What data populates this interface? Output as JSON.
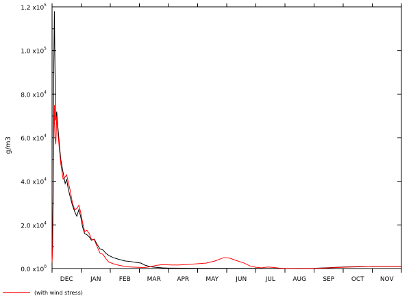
{
  "chart_data": {
    "type": "line",
    "title": "",
    "xlabel": "",
    "ylabel": "g/m3",
    "ylim": [
      0,
      120000
    ],
    "grid": false,
    "legend_placement": "bottom-left",
    "x_ticks": [
      "DEC",
      "JAN",
      "FEB",
      "MAR",
      "APR",
      "MAY",
      "JUN",
      "JUL",
      "AUG",
      "SEP",
      "OCT",
      "NOV"
    ],
    "x_range_months": [
      0,
      12
    ],
    "y_ticks": [
      {
        "value": 0,
        "mantissa": "0.0",
        "exp": "0"
      },
      {
        "value": 20000,
        "mantissa": "2.0",
        "exp": "4"
      },
      {
        "value": 40000,
        "mantissa": "4.0",
        "exp": "4"
      },
      {
        "value": 60000,
        "mantissa": "6.0",
        "exp": "4"
      },
      {
        "value": 80000,
        "mantissa": "8.0",
        "exp": "4"
      },
      {
        "value": 100000,
        "mantissa": "1.0",
        "exp": "5"
      },
      {
        "value": 120000,
        "mantissa": "1.2",
        "exp": "5"
      }
    ],
    "y_tick_times": "x10",
    "series": [
      {
        "name": "",
        "color": "#000000",
        "points": [
          [
            0.0,
            3000
          ],
          [
            0.02,
            15000
          ],
          [
            0.04,
            40000
          ],
          [
            0.06,
            95000
          ],
          [
            0.08,
            118000
          ],
          [
            0.1,
            92000
          ],
          [
            0.13,
            68000
          ],
          [
            0.16,
            72000
          ],
          [
            0.2,
            65000
          ],
          [
            0.25,
            57000
          ],
          [
            0.3,
            50000
          ],
          [
            0.38,
            44000
          ],
          [
            0.45,
            39000
          ],
          [
            0.5,
            41000
          ],
          [
            0.55,
            37000
          ],
          [
            0.62,
            33000
          ],
          [
            0.7,
            29000
          ],
          [
            0.78,
            26000
          ],
          [
            0.85,
            24000
          ],
          [
            0.92,
            27000
          ],
          [
            0.98,
            24000
          ],
          [
            1.05,
            19000
          ],
          [
            1.12,
            16000
          ],
          [
            1.2,
            15500
          ],
          [
            1.28,
            14500
          ],
          [
            1.35,
            13000
          ],
          [
            1.45,
            13500
          ],
          [
            1.55,
            11000
          ],
          [
            1.65,
            9000
          ],
          [
            1.75,
            8500
          ],
          [
            1.85,
            7000
          ],
          [
            1.95,
            6000
          ],
          [
            2.1,
            5000
          ],
          [
            2.3,
            4200
          ],
          [
            2.5,
            3500
          ],
          [
            2.7,
            3200
          ],
          [
            2.9,
            2800
          ],
          [
            3.05,
            2500
          ],
          [
            3.2,
            1500
          ],
          [
            3.4,
            800
          ],
          [
            3.6,
            500
          ],
          [
            3.8,
            300
          ],
          [
            4.0,
            200
          ],
          [
            4.5,
            150
          ],
          [
            5.0,
            100
          ],
          [
            6.0,
            80
          ],
          [
            7.0,
            60
          ],
          [
            8.0,
            50
          ],
          [
            9.0,
            100
          ],
          [
            9.5,
            400
          ],
          [
            10.0,
            700
          ],
          [
            10.5,
            900
          ],
          [
            11.0,
            1000
          ],
          [
            11.5,
            1000
          ],
          [
            12.0,
            1000
          ]
        ]
      },
      {
        "name": "(with wind stress)",
        "color": "#ff0000",
        "points": [
          [
            0.0,
            3000
          ],
          [
            0.02,
            10000
          ],
          [
            0.04,
            30000
          ],
          [
            0.06,
            62000
          ],
          [
            0.08,
            75000
          ],
          [
            0.1,
            60000
          ],
          [
            0.13,
            57000
          ],
          [
            0.16,
            70000
          ],
          [
            0.2,
            62000
          ],
          [
            0.25,
            55000
          ],
          [
            0.3,
            48000
          ],
          [
            0.38,
            41000
          ],
          [
            0.45,
            42000
          ],
          [
            0.5,
            43000
          ],
          [
            0.55,
            40000
          ],
          [
            0.62,
            36000
          ],
          [
            0.7,
            30000
          ],
          [
            0.78,
            27000
          ],
          [
            0.85,
            27500
          ],
          [
            0.92,
            29000
          ],
          [
            0.98,
            26000
          ],
          [
            1.05,
            21000
          ],
          [
            1.12,
            17000
          ],
          [
            1.2,
            17500
          ],
          [
            1.28,
            16000
          ],
          [
            1.35,
            13500
          ],
          [
            1.45,
            13200
          ],
          [
            1.55,
            10000
          ],
          [
            1.65,
            7000
          ],
          [
            1.75,
            6500
          ],
          [
            1.85,
            4500
          ],
          [
            1.95,
            3000
          ],
          [
            2.1,
            2200
          ],
          [
            2.3,
            1500
          ],
          [
            2.5,
            1000
          ],
          [
            2.7,
            700
          ],
          [
            2.9,
            600
          ],
          [
            3.05,
            500
          ],
          [
            3.2,
            500
          ],
          [
            3.4,
            900
          ],
          [
            3.6,
            1500
          ],
          [
            3.8,
            1800
          ],
          [
            4.0,
            1700
          ],
          [
            4.3,
            1600
          ],
          [
            4.6,
            1800
          ],
          [
            5.0,
            2200
          ],
          [
            5.3,
            2500
          ],
          [
            5.6,
            3500
          ],
          [
            5.9,
            5000
          ],
          [
            6.1,
            4800
          ],
          [
            6.3,
            3800
          ],
          [
            6.6,
            2500
          ],
          [
            6.8,
            1200
          ],
          [
            7.0,
            600
          ],
          [
            7.2,
            300
          ],
          [
            7.4,
            700
          ],
          [
            7.6,
            500
          ],
          [
            7.8,
            200
          ],
          [
            8.0,
            80
          ],
          [
            9.0,
            50
          ],
          [
            9.5,
            300
          ],
          [
            10.0,
            600
          ],
          [
            10.5,
            800
          ],
          [
            11.0,
            1000
          ],
          [
            11.5,
            1000
          ],
          [
            12.0,
            1000
          ]
        ]
      }
    ]
  }
}
